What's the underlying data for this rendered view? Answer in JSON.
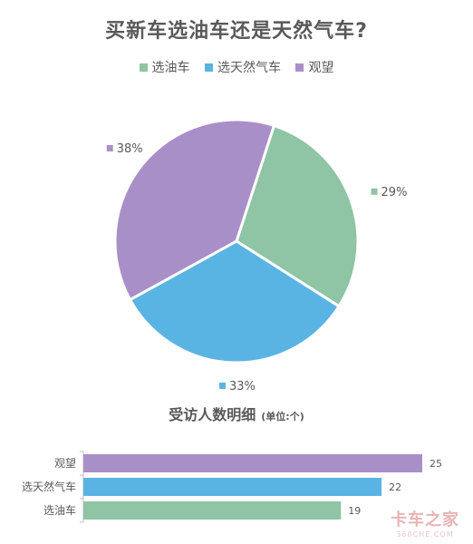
{
  "chart_data": [
    {
      "type": "pie",
      "title": "买新车选油车还是天然气车?",
      "legend_position": "top",
      "categories": [
        "选油车",
        "选天然气车",
        "观望"
      ],
      "values": [
        29,
        33,
        38
      ],
      "labels": [
        "29%",
        "33%",
        "38%"
      ],
      "colors": [
        "#8fc4a5",
        "#5ab4e3",
        "#a98fc8"
      ]
    },
    {
      "type": "bar",
      "orientation": "horizontal",
      "title": "受访人数明细",
      "subtitle": "(单位:个)",
      "categories": [
        "选油车",
        "选天然气车",
        "观望"
      ],
      "values": [
        19,
        22,
        25
      ],
      "colors": [
        "#8fc4a5",
        "#5ab4e3",
        "#a98fc8"
      ],
      "xlim": [
        0,
        25
      ]
    }
  ],
  "watermark": {
    "text": "卡车之家",
    "sub": "360CHE.COM"
  }
}
